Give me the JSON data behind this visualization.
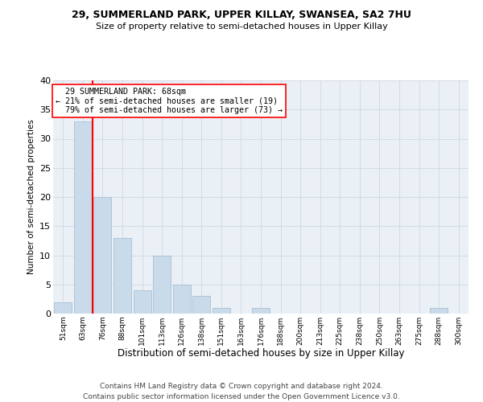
{
  "title1": "29, SUMMERLAND PARK, UPPER KILLAY, SWANSEA, SA2 7HU",
  "title2": "Size of property relative to semi-detached houses in Upper Killay",
  "xlabel": "Distribution of semi-detached houses by size in Upper Killay",
  "ylabel": "Number of semi-detached properties",
  "footer1": "Contains HM Land Registry data © Crown copyright and database right 2024.",
  "footer2": "Contains public sector information licensed under the Open Government Licence v3.0.",
  "bar_labels": [
    "51sqm",
    "63sqm",
    "76sqm",
    "88sqm",
    "101sqm",
    "113sqm",
    "126sqm",
    "138sqm",
    "151sqm",
    "163sqm",
    "176sqm",
    "188sqm",
    "200sqm",
    "213sqm",
    "225sqm",
    "238sqm",
    "250sqm",
    "263sqm",
    "275sqm",
    "288sqm",
    "300sqm"
  ],
  "bar_values": [
    2,
    33,
    20,
    13,
    4,
    10,
    5,
    3,
    1,
    0,
    1,
    0,
    0,
    0,
    0,
    0,
    0,
    0,
    0,
    1,
    0
  ],
  "bar_color": "#c9daea",
  "bar_edge_color": "#a8c0d4",
  "property_label": "29 SUMMERLAND PARK: 68sqm",
  "pct_smaller": 21,
  "pct_smaller_n": 19,
  "pct_larger": 79,
  "pct_larger_n": 73,
  "vline_x": 1.5,
  "ylim": [
    0,
    40
  ],
  "yticks": [
    0,
    5,
    10,
    15,
    20,
    25,
    30,
    35,
    40
  ],
  "grid_color": "#d0d8e0",
  "bg_color": "#eaf0f6"
}
